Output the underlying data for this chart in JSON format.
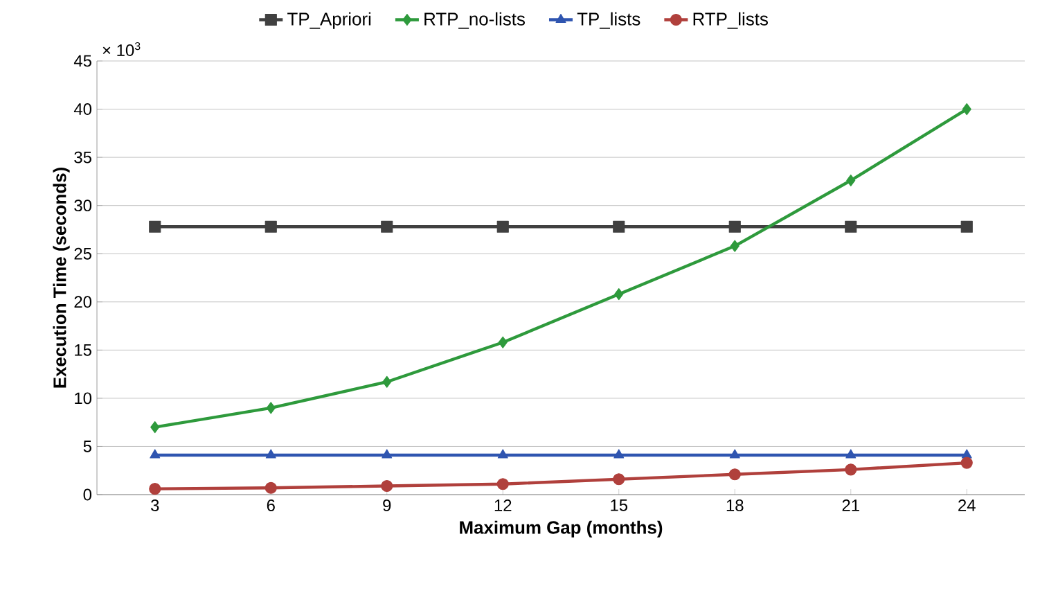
{
  "chart_data": {
    "type": "line",
    "xlabel": "Maximum Gap (months)",
    "ylabel": "Execution Time (seconds)",
    "categories": [
      "3",
      "6",
      "9",
      "12",
      "15",
      "18",
      "21",
      "24"
    ],
    "series": [
      {
        "name": "TP_Apriori",
        "color": "#404040",
        "marker": "square",
        "values": [
          27.8,
          27.8,
          27.8,
          27.8,
          27.8,
          27.8,
          27.8,
          27.8
        ]
      },
      {
        "name": "RTP_no-lists",
        "color": "#2e9a3c",
        "marker": "diamond",
        "values": [
          7.0,
          9.0,
          11.7,
          15.8,
          20.8,
          25.8,
          32.6,
          40.0
        ]
      },
      {
        "name": "TP_lists",
        "color": "#2f55b0",
        "marker": "triangle",
        "values": [
          4.1,
          4.1,
          4.1,
          4.1,
          4.1,
          4.1,
          4.1,
          4.1
        ]
      },
      {
        "name": "RTP_lists",
        "color": "#b0403c",
        "marker": "circle",
        "values": [
          0.6,
          0.7,
          0.9,
          1.1,
          1.6,
          2.1,
          2.6,
          3.3
        ]
      }
    ],
    "ylim": [
      0,
      45
    ],
    "yticks": [
      0,
      5,
      10,
      15,
      20,
      25,
      30,
      35,
      40,
      45
    ],
    "annotations": [
      "× 10$^{3}$"
    ],
    "grid": "y",
    "legend": "top"
  }
}
